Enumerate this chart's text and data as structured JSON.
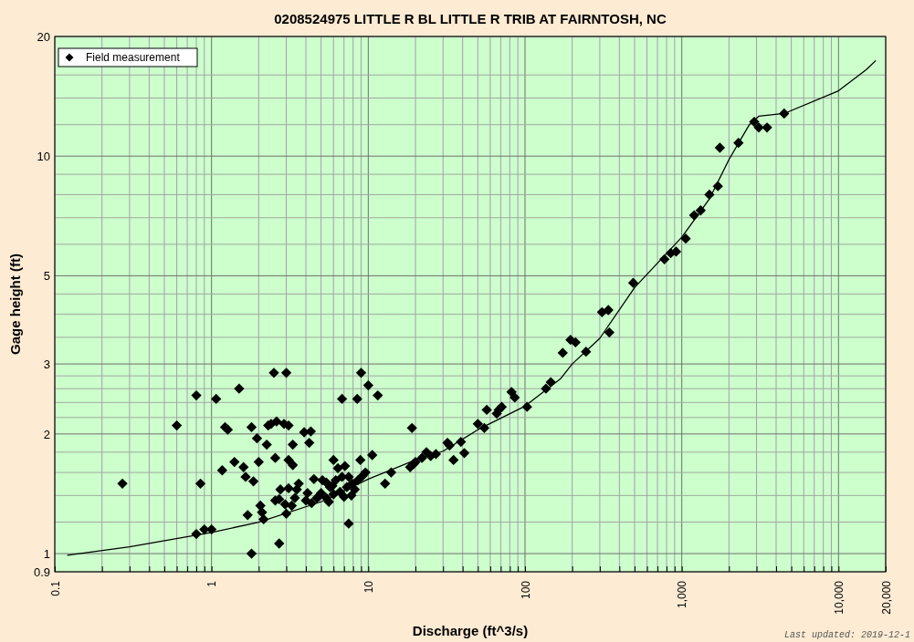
{
  "chart_data": {
    "type": "scatter",
    "title": "0208524975 LITTLE R BL LITTLE R TRIB AT FAIRNTOSH, NC",
    "xlabel": "Discharge (ft^3/s)",
    "ylabel": "Gage height (ft)",
    "log": "xy",
    "grid": true,
    "legend": "top left",
    "xlim": [
      0.1,
      20000
    ],
    "ylim": [
      0.9,
      20
    ],
    "xticks": [
      0.1,
      {
        "value": 0.2,
        "label": null
      },
      {
        "value": 0.3,
        "label": null
      },
      {
        "value": 0.4,
        "label": null
      },
      {
        "value": 0.5,
        "label": null
      },
      {
        "value": 0.6,
        "label": null
      },
      {
        "value": 0.7,
        "label": null
      },
      {
        "value": 0.8,
        "label": null
      },
      {
        "value": 0.9,
        "label": null
      },
      1,
      {
        "value": 2,
        "label": null
      },
      {
        "value": 3,
        "label": null
      },
      {
        "value": 4,
        "label": null
      },
      {
        "value": 5,
        "label": null
      },
      {
        "value": 6,
        "label": null
      },
      {
        "value": 7,
        "label": null
      },
      {
        "value": 8,
        "label": null
      },
      {
        "value": 9,
        "label": null
      },
      10,
      {
        "value": 20,
        "label": null
      },
      {
        "value": 30,
        "label": null
      },
      {
        "value": 40,
        "label": null
      },
      {
        "value": 50,
        "label": null
      },
      {
        "value": 60,
        "label": null
      },
      {
        "value": 70,
        "label": null
      },
      {
        "value": 80,
        "label": null
      },
      {
        "value": 90,
        "label": null
      },
      100,
      {
        "value": 200,
        "label": null
      },
      {
        "value": 300,
        "label": null
      },
      {
        "value": 400,
        "label": null
      },
      {
        "value": 500,
        "label": null
      },
      {
        "value": 600,
        "label": null
      },
      {
        "value": 700,
        "label": null
      },
      {
        "value": 800,
        "label": null
      },
      {
        "value": 900,
        "label": null
      },
      {
        "value": 1000,
        "label": "1,000"
      },
      {
        "value": 2000,
        "label": null
      },
      {
        "value": 3000,
        "label": null
      },
      {
        "value": 4000,
        "label": null
      },
      {
        "value": 5000,
        "label": null
      },
      {
        "value": 6000,
        "label": null
      },
      {
        "value": 7000,
        "label": null
      },
      {
        "value": 8000,
        "label": null
      },
      {
        "value": 9000,
        "label": null
      },
      {
        "value": 10000,
        "label": "10,000"
      },
      {
        "value": 20000,
        "label": "20,000"
      }
    ],
    "yticks": [
      0.9,
      1,
      {
        "value": 1.2,
        "label": null
      },
      {
        "value": 1.4,
        "label": null
      },
      {
        "value": 1.6,
        "label": null
      },
      {
        "value": 1.8,
        "label": null
      },
      2,
      {
        "value": 2.2,
        "label": null
      },
      {
        "value": 2.4,
        "label": null
      },
      {
        "value": 2.6,
        "label": null
      },
      {
        "value": 2.8,
        "label": null
      },
      3,
      {
        "value": 3.5,
        "label": null
      },
      {
        "value": 4,
        "label": null
      },
      {
        "value": 4.5,
        "label": null
      },
      5,
      {
        "value": 6,
        "label": null
      },
      {
        "value": 7,
        "label": null
      },
      {
        "value": 8,
        "label": null
      },
      {
        "value": 9,
        "label": null
      },
      10,
      {
        "value": 12,
        "label": null
      },
      {
        "value": 14,
        "label": null
      },
      {
        "value": 16,
        "label": null
      },
      20
    ],
    "annotations": [
      "Last updated: 2019-12-1"
    ],
    "series": [
      {
        "type": "line",
        "color": "#000000",
        "marker": "none",
        "x": [
          0.12,
          0.3,
          1,
          2,
          5,
          10,
          20,
          30,
          50,
          100,
          168,
          200,
          300,
          500,
          1000,
          1500,
          2000,
          2700,
          3100,
          4500,
          10000,
          15000,
          17300
        ],
        "values": [
          0.99,
          1.04,
          1.13,
          1.2,
          1.35,
          1.54,
          1.72,
          1.81,
          2.05,
          2.35,
          2.75,
          3.0,
          3.48,
          4.67,
          6.25,
          7.8,
          9.8,
          12.0,
          12.6,
          12.8,
          14.6,
          16.5,
          17.4
        ]
      },
      {
        "name": "Field measurement",
        "color": "#000000",
        "marker": "diamond",
        "x": [
          0.27,
          0.6,
          0.8,
          0.85,
          0.8,
          0.9,
          1.0,
          1.07,
          1.17,
          1.22,
          1.27,
          1.4,
          1.5,
          1.6,
          1.65,
          1.7,
          1.8,
          1.85,
          1.8,
          1.95,
          2.0,
          2.05,
          2.1,
          2.15,
          2.25,
          2.3,
          2.4,
          2.5,
          2.55,
          2.6,
          2.55,
          2.7,
          2.7,
          2.75,
          2.9,
          3.0,
          3.1,
          2.95,
          3.0,
          3.1,
          3.1,
          3.25,
          3.3,
          3.3,
          3.4,
          3.5,
          3.6,
          3.9,
          4.0,
          4.1,
          4.2,
          4.3,
          4.35,
          4.5,
          4.7,
          4.8,
          5.0,
          5.1,
          5.4,
          5.4,
          5.6,
          5.7,
          5.9,
          6.0,
          6.0,
          6.2,
          6.4,
          6.6,
          6.8,
          6.8,
          7.0,
          7.1,
          7.3,
          7.5,
          7.5,
          7.8,
          7.9,
          8.2,
          8.6,
          8.5,
          8.9,
          9.0,
          9.2,
          9.6,
          10,
          10.6,
          11.5,
          12.8,
          14,
          18.5,
          19,
          19.5,
          20,
          22,
          23.5,
          25,
          27,
          32,
          33,
          35,
          39,
          41,
          50,
          55,
          57,
          66,
          68,
          71,
          82,
          86,
          103,
          136,
          146,
          174,
          195,
          210,
          245,
          310,
          340,
          345,
          490,
          775,
          850,
          920,
          1060,
          1200,
          1320,
          1500,
          1700,
          1750,
          2300,
          2900,
          3100,
          3500,
          4500
        ],
        "values": [
          1.5,
          2.1,
          2.5,
          1.5,
          1.12,
          1.15,
          1.15,
          2.45,
          1.62,
          2.08,
          2.05,
          1.7,
          2.6,
          1.65,
          1.56,
          1.25,
          2.08,
          1.52,
          1.0,
          1.95,
          1.7,
          1.32,
          1.27,
          1.22,
          1.88,
          2.1,
          2.12,
          2.85,
          1.74,
          2.15,
          1.36,
          1.37,
          1.06,
          1.45,
          2.12,
          2.85,
          2.1,
          1.33,
          1.26,
          1.46,
          1.72,
          1.32,
          1.88,
          1.67,
          1.38,
          1.45,
          1.5,
          2.02,
          1.36,
          1.42,
          1.9,
          2.03,
          1.34,
          1.54,
          1.38,
          1.39,
          1.42,
          1.53,
          1.51,
          1.38,
          1.35,
          1.47,
          1.48,
          1.72,
          1.41,
          1.53,
          1.64,
          1.43,
          1.56,
          2.45,
          1.39,
          1.66,
          1.47,
          1.19,
          1.56,
          1.4,
          1.5,
          1.45,
          1.53,
          2.45,
          1.72,
          2.85,
          1.57,
          1.6,
          2.65,
          1.77,
          2.5,
          1.5,
          1.6,
          1.65,
          2.07,
          1.68,
          1.7,
          1.74,
          1.8,
          1.76,
          1.78,
          1.9,
          1.87,
          1.72,
          1.91,
          1.79,
          2.12,
          2.07,
          2.3,
          2.25,
          2.3,
          2.34,
          2.55,
          2.47,
          2.34,
          2.6,
          2.7,
          3.2,
          3.45,
          3.4,
          3.22,
          4.05,
          4.1,
          3.6,
          4.8,
          5.5,
          5.7,
          5.75,
          6.2,
          7.1,
          7.3,
          8.0,
          8.4,
          10.5,
          10.8,
          12.2,
          11.8,
          11.8,
          12.8
        ]
      }
    ]
  }
}
